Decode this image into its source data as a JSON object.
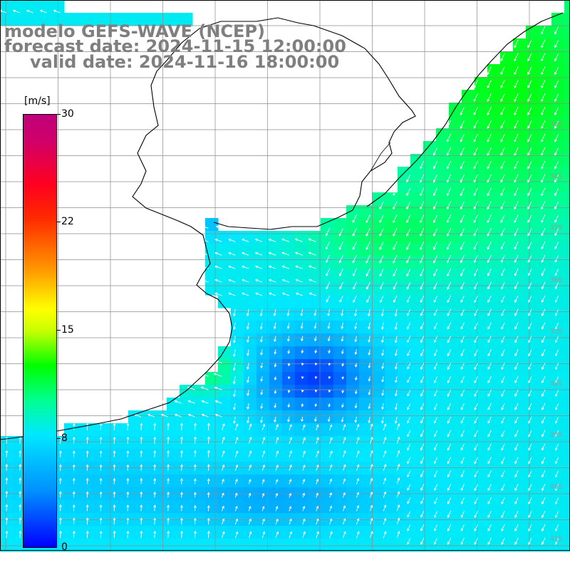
{
  "title": {
    "line1": "modelo GEFS-WAVE (NCEP)",
    "line2": "forecast date: 2024-11-15 12:00:00",
    "line3": "valid date: 2024-11-16 18:00:00"
  },
  "colorbar": {
    "unit": "[m/s]",
    "min": 0,
    "max": 30,
    "tick_labels": [
      "30",
      "22",
      "15",
      "8",
      "0"
    ],
    "tick_values": [
      30,
      22,
      15,
      8,
      0
    ]
  },
  "lat_labels": [
    "33S",
    "34S",
    "35S",
    "36S",
    "37S",
    "38S",
    "39S",
    "40S",
    "41S"
  ],
  "colors": {
    "land": "#ffffff",
    "coast": "#000000",
    "grid": "#8c8c8c",
    "arrows": "#ffffff",
    "title": "#7f7f7f"
  }
}
